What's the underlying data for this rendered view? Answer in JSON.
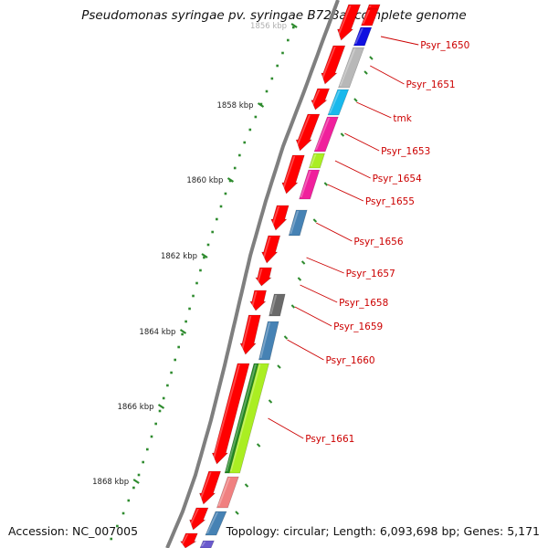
{
  "title": "Pseudomonas syringae pv. syringae B728a, complete genome",
  "accession": "Accession: NC_007005",
  "topology": "Topology: circular; Length: 6,093,698 bp; Genes: 5,171",
  "ticks": [
    {
      "label": "1856 kbp",
      "faded": true
    },
    {
      "label": "1858 kbp"
    },
    {
      "label": "1860 kbp"
    },
    {
      "label": "1862 kbp"
    },
    {
      "label": "1864 kbp"
    },
    {
      "label": "1866 kbp"
    },
    {
      "label": "1868 kbp"
    }
  ],
  "gene_labels": [
    "Psyr_1650",
    "Psyr_1651",
    "tmk",
    "Psyr_1653",
    "Psyr_1654",
    "Psyr_1655",
    "Psyr_1656",
    "Psyr_1657",
    "Psyr_1658",
    "Psyr_1659",
    "Psyr_1660",
    "Psyr_1661"
  ],
  "colors": {
    "cds": "#ff0000",
    "blue": "#1010e0",
    "gray": "#b8b8b8",
    "cyan": "#19b8ec",
    "pink": "#f0209c",
    "lime": "#aaee22",
    "steelblue": "#4682b4",
    "darkgray": "#6a6a6a",
    "darkgreen": "#228822",
    "salmon": "#f08080",
    "slate": "#6a5acd",
    "backbone": "#7f7f7f",
    "tick": "#2e8b2e",
    "label": "#cc0000"
  }
}
